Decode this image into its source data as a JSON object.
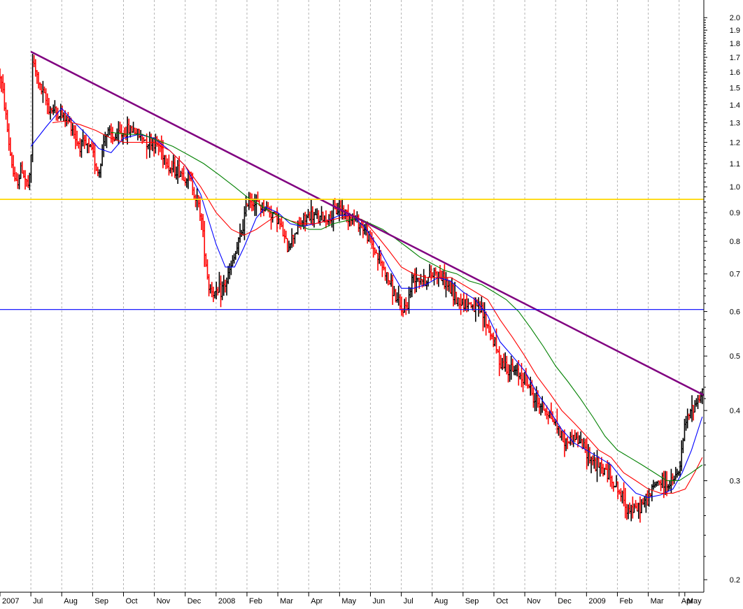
{
  "chart_data": {
    "type": "ohlc",
    "title": "",
    "xlabel": "",
    "ylabel": "",
    "y_scale": "log",
    "ylim": [
      0.19,
      2.15
    ],
    "y_ticks": [
      0.2,
      0.3,
      0.4,
      0.5,
      0.6,
      0.7,
      0.8,
      0.9,
      1.0,
      1.1,
      1.2,
      1.3,
      1.4,
      1.5,
      1.6,
      1.7,
      1.8,
      1.9,
      2.0
    ],
    "y_tick_labels": [
      "0.2",
      "0.3",
      "0.4",
      "0.5",
      "0.6",
      "0.7",
      "0.8",
      "0.9",
      "1.0",
      "1.1",
      "1.2",
      "1.3",
      "1.4",
      "1.5",
      "1.6",
      "1.7",
      "1.8",
      "1.9",
      "2.0"
    ],
    "x_range": [
      0,
      22.8
    ],
    "x_ticks": [
      {
        "pos": 0,
        "label": "2007"
      },
      {
        "pos": 1,
        "label": "Jul"
      },
      {
        "pos": 2,
        "label": "Aug"
      },
      {
        "pos": 3,
        "label": "Sep"
      },
      {
        "pos": 4,
        "label": "Oct"
      },
      {
        "pos": 5,
        "label": "Nov"
      },
      {
        "pos": 6,
        "label": "Dec"
      },
      {
        "pos": 7,
        "label": "2008"
      },
      {
        "pos": 8,
        "label": "Feb"
      },
      {
        "pos": 9,
        "label": "Mar"
      },
      {
        "pos": 10,
        "label": "Apr"
      },
      {
        "pos": 11,
        "label": "May"
      },
      {
        "pos": 12,
        "label": "Jun"
      },
      {
        "pos": 13,
        "label": "Jul"
      },
      {
        "pos": 14,
        "label": "Aug"
      },
      {
        "pos": 15,
        "label": "Sep"
      },
      {
        "pos": 16,
        "label": "Oct"
      },
      {
        "pos": 17,
        "label": "Nov"
      },
      {
        "pos": 18,
        "label": "Dec"
      },
      {
        "pos": 19,
        "label": "2009"
      },
      {
        "pos": 20,
        "label": "Feb"
      },
      {
        "pos": 21,
        "label": "Mar"
      },
      {
        "pos": 22,
        "label": "Apr"
      },
      {
        "pos": 23,
        "label": "May"
      }
    ],
    "grid": true,
    "price_anchors": [
      {
        "x": 0.0,
        "price": 1.58
      },
      {
        "x": 0.15,
        "price": 1.4
      },
      {
        "x": 0.3,
        "price": 1.18
      },
      {
        "x": 0.5,
        "price": 1.0
      },
      {
        "x": 0.7,
        "price": 1.08
      },
      {
        "x": 0.9,
        "price": 1.0
      },
      {
        "x": 1.0,
        "price": 1.05
      },
      {
        "x": 1.05,
        "price": 1.68
      },
      {
        "x": 1.3,
        "price": 1.5
      },
      {
        "x": 1.6,
        "price": 1.38
      },
      {
        "x": 2.0,
        "price": 1.34
      },
      {
        "x": 2.3,
        "price": 1.3
      },
      {
        "x": 2.5,
        "price": 1.2
      },
      {
        "x": 2.8,
        "price": 1.18
      },
      {
        "x": 3.0,
        "price": 1.15
      },
      {
        "x": 3.2,
        "price": 1.05
      },
      {
        "x": 3.4,
        "price": 1.25
      },
      {
        "x": 3.7,
        "price": 1.22
      },
      {
        "x": 4.0,
        "price": 1.25
      },
      {
        "x": 4.3,
        "price": 1.27
      },
      {
        "x": 4.6,
        "price": 1.22
      },
      {
        "x": 5.0,
        "price": 1.2
      },
      {
        "x": 5.2,
        "price": 1.18
      },
      {
        "x": 5.5,
        "price": 1.08
      },
      {
        "x": 5.8,
        "price": 1.07
      },
      {
        "x": 6.2,
        "price": 1.02
      },
      {
        "x": 6.5,
        "price": 0.9
      },
      {
        "x": 6.75,
        "price": 0.67
      },
      {
        "x": 7.0,
        "price": 0.64
      },
      {
        "x": 7.3,
        "price": 0.67
      },
      {
        "x": 7.6,
        "price": 0.75
      },
      {
        "x": 7.8,
        "price": 0.82
      },
      {
        "x": 8.05,
        "price": 0.96
      },
      {
        "x": 8.3,
        "price": 0.93
      },
      {
        "x": 8.6,
        "price": 0.92
      },
      {
        "x": 9.0,
        "price": 0.88
      },
      {
        "x": 9.3,
        "price": 0.78
      },
      {
        "x": 9.6,
        "price": 0.84
      },
      {
        "x": 10.0,
        "price": 0.89
      },
      {
        "x": 10.3,
        "price": 0.88
      },
      {
        "x": 10.7,
        "price": 0.88
      },
      {
        "x": 11.0,
        "price": 0.92
      },
      {
        "x": 11.3,
        "price": 0.89
      },
      {
        "x": 11.7,
        "price": 0.86
      },
      {
        "x": 12.0,
        "price": 0.8
      },
      {
        "x": 12.3,
        "price": 0.74
      },
      {
        "x": 12.7,
        "price": 0.66
      },
      {
        "x": 13.0,
        "price": 0.6
      },
      {
        "x": 13.2,
        "price": 0.62
      },
      {
        "x": 13.4,
        "price": 0.7
      },
      {
        "x": 13.8,
        "price": 0.68
      },
      {
        "x": 14.1,
        "price": 0.71
      },
      {
        "x": 14.4,
        "price": 0.68
      },
      {
        "x": 14.8,
        "price": 0.63
      },
      {
        "x": 15.2,
        "price": 0.62
      },
      {
        "x": 15.6,
        "price": 0.6
      },
      {
        "x": 16.0,
        "price": 0.53
      },
      {
        "x": 16.2,
        "price": 0.49
      },
      {
        "x": 16.6,
        "price": 0.47
      },
      {
        "x": 17.0,
        "price": 0.46
      },
      {
        "x": 17.3,
        "price": 0.42
      },
      {
        "x": 17.7,
        "price": 0.4
      },
      {
        "x": 18.0,
        "price": 0.38
      },
      {
        "x": 18.3,
        "price": 0.35
      },
      {
        "x": 18.6,
        "price": 0.36
      },
      {
        "x": 19.0,
        "price": 0.34
      },
      {
        "x": 19.3,
        "price": 0.32
      },
      {
        "x": 19.7,
        "price": 0.31
      },
      {
        "x": 20.0,
        "price": 0.29
      },
      {
        "x": 20.3,
        "price": 0.27
      },
      {
        "x": 20.6,
        "price": 0.265
      },
      {
        "x": 21.0,
        "price": 0.28
      },
      {
        "x": 21.3,
        "price": 0.3
      },
      {
        "x": 21.7,
        "price": 0.295
      },
      {
        "x": 22.0,
        "price": 0.31
      },
      {
        "x": 22.2,
        "price": 0.38
      },
      {
        "x": 22.5,
        "price": 0.41
      },
      {
        "x": 22.75,
        "price": 0.43
      }
    ],
    "series": [
      {
        "type": "ohlc",
        "color_up": "#000000",
        "color_down": "#ff0000"
      },
      {
        "type": "moving-average",
        "color": "#0000ff",
        "points": [
          [
            1.0,
            1.18
          ],
          [
            1.5,
            1.28
          ],
          [
            2.0,
            1.38
          ],
          [
            2.3,
            1.32
          ],
          [
            2.8,
            1.24
          ],
          [
            3.2,
            1.17
          ],
          [
            3.6,
            1.15
          ],
          [
            4.0,
            1.22
          ],
          [
            4.5,
            1.24
          ],
          [
            5.0,
            1.22
          ],
          [
            5.5,
            1.16
          ],
          [
            6.0,
            1.09
          ],
          [
            6.5,
            0.97
          ],
          [
            7.0,
            0.79
          ],
          [
            7.3,
            0.72
          ],
          [
            7.6,
            0.72
          ],
          [
            7.9,
            0.78
          ],
          [
            8.3,
            0.88
          ],
          [
            8.6,
            0.92
          ],
          [
            9.0,
            0.9
          ],
          [
            9.4,
            0.86
          ],
          [
            9.8,
            0.85
          ],
          [
            10.2,
            0.86
          ],
          [
            10.6,
            0.87
          ],
          [
            11.0,
            0.89
          ],
          [
            11.4,
            0.89
          ],
          [
            11.8,
            0.85
          ],
          [
            12.2,
            0.79
          ],
          [
            12.6,
            0.72
          ],
          [
            13.0,
            0.66
          ],
          [
            13.4,
            0.66
          ],
          [
            13.8,
            0.67
          ],
          [
            14.2,
            0.69
          ],
          [
            14.6,
            0.68
          ],
          [
            15.0,
            0.65
          ],
          [
            15.4,
            0.63
          ],
          [
            15.8,
            0.59
          ],
          [
            16.2,
            0.53
          ],
          [
            16.6,
            0.5
          ],
          [
            17.0,
            0.47
          ],
          [
            17.4,
            0.43
          ],
          [
            17.8,
            0.4
          ],
          [
            18.2,
            0.37
          ],
          [
            18.6,
            0.35
          ],
          [
            19.0,
            0.34
          ],
          [
            19.4,
            0.33
          ],
          [
            19.8,
            0.32
          ],
          [
            20.2,
            0.3
          ],
          [
            20.6,
            0.285
          ],
          [
            21.0,
            0.28
          ],
          [
            21.4,
            0.283
          ],
          [
            21.8,
            0.29
          ],
          [
            22.1,
            0.31
          ],
          [
            22.4,
            0.34
          ],
          [
            22.75,
            0.39
          ]
        ]
      },
      {
        "type": "moving-average",
        "color": "#ff0000",
        "points": [
          [
            1.7,
            1.3
          ],
          [
            2.1,
            1.31
          ],
          [
            2.6,
            1.29
          ],
          [
            3.1,
            1.26
          ],
          [
            3.6,
            1.22
          ],
          [
            4.0,
            1.2
          ],
          [
            4.5,
            1.2
          ],
          [
            5.0,
            1.2
          ],
          [
            5.5,
            1.16
          ],
          [
            6.0,
            1.09
          ],
          [
            6.5,
            1.0
          ],
          [
            7.0,
            0.9
          ],
          [
            7.5,
            0.84
          ],
          [
            7.9,
            0.82
          ],
          [
            8.3,
            0.84
          ],
          [
            8.7,
            0.87
          ],
          [
            9.0,
            0.89
          ],
          [
            9.4,
            0.87
          ],
          [
            9.8,
            0.86
          ],
          [
            10.2,
            0.86
          ],
          [
            10.6,
            0.87
          ],
          [
            11.0,
            0.88
          ],
          [
            11.4,
            0.89
          ],
          [
            11.8,
            0.87
          ],
          [
            12.2,
            0.82
          ],
          [
            12.6,
            0.77
          ],
          [
            13.0,
            0.72
          ],
          [
            13.4,
            0.7
          ],
          [
            13.8,
            0.69
          ],
          [
            14.2,
            0.69
          ],
          [
            14.6,
            0.69
          ],
          [
            15.0,
            0.67
          ],
          [
            15.4,
            0.65
          ],
          [
            15.8,
            0.63
          ],
          [
            16.2,
            0.58
          ],
          [
            16.6,
            0.54
          ],
          [
            17.0,
            0.5
          ],
          [
            17.4,
            0.46
          ],
          [
            17.8,
            0.43
          ],
          [
            18.2,
            0.4
          ],
          [
            18.6,
            0.38
          ],
          [
            19.0,
            0.36
          ],
          [
            19.4,
            0.34
          ],
          [
            19.8,
            0.33
          ],
          [
            20.2,
            0.31
          ],
          [
            20.6,
            0.3
          ],
          [
            21.0,
            0.29
          ],
          [
            21.4,
            0.285
          ],
          [
            21.8,
            0.285
          ],
          [
            22.2,
            0.29
          ],
          [
            22.5,
            0.31
          ],
          [
            22.75,
            0.33
          ]
        ]
      },
      {
        "type": "moving-average",
        "color": "#008000",
        "points": [
          [
            3.6,
            1.25
          ],
          [
            4.1,
            1.24
          ],
          [
            4.6,
            1.24
          ],
          [
            5.1,
            1.21
          ],
          [
            5.6,
            1.18
          ],
          [
            6.1,
            1.14
          ],
          [
            6.6,
            1.1
          ],
          [
            7.1,
            1.05
          ],
          [
            7.6,
            1.0
          ],
          [
            8.0,
            0.96
          ],
          [
            8.4,
            0.93
          ],
          [
            8.8,
            0.9
          ],
          [
            9.2,
            0.88
          ],
          [
            9.6,
            0.86
          ],
          [
            10.0,
            0.84
          ],
          [
            10.4,
            0.84
          ],
          [
            10.8,
            0.86
          ],
          [
            11.2,
            0.87
          ],
          [
            11.6,
            0.88
          ],
          [
            12.0,
            0.86
          ],
          [
            12.4,
            0.84
          ],
          [
            12.8,
            0.81
          ],
          [
            13.2,
            0.78
          ],
          [
            13.6,
            0.75
          ],
          [
            14.0,
            0.73
          ],
          [
            14.4,
            0.71
          ],
          [
            14.8,
            0.7
          ],
          [
            15.2,
            0.68
          ],
          [
            15.6,
            0.67
          ],
          [
            16.0,
            0.65
          ],
          [
            16.4,
            0.63
          ],
          [
            16.8,
            0.6
          ],
          [
            17.2,
            0.56
          ],
          [
            17.6,
            0.52
          ],
          [
            18.0,
            0.48
          ],
          [
            18.4,
            0.45
          ],
          [
            18.8,
            0.42
          ],
          [
            19.2,
            0.39
          ],
          [
            19.6,
            0.36
          ],
          [
            20.0,
            0.34
          ],
          [
            20.4,
            0.33
          ],
          [
            20.8,
            0.32
          ],
          [
            21.2,
            0.31
          ],
          [
            21.6,
            0.3
          ],
          [
            22.0,
            0.3
          ],
          [
            22.4,
            0.31
          ],
          [
            22.75,
            0.32
          ]
        ]
      },
      {
        "type": "trendline",
        "color": "#800080",
        "points": [
          [
            1.0,
            1.74
          ],
          [
            22.8,
            0.426
          ]
        ]
      },
      {
        "type": "horizontal-line",
        "color": "#ffd700",
        "value": 0.95
      },
      {
        "type": "horizontal-line",
        "color": "#0000ff",
        "value": 0.605
      }
    ]
  }
}
